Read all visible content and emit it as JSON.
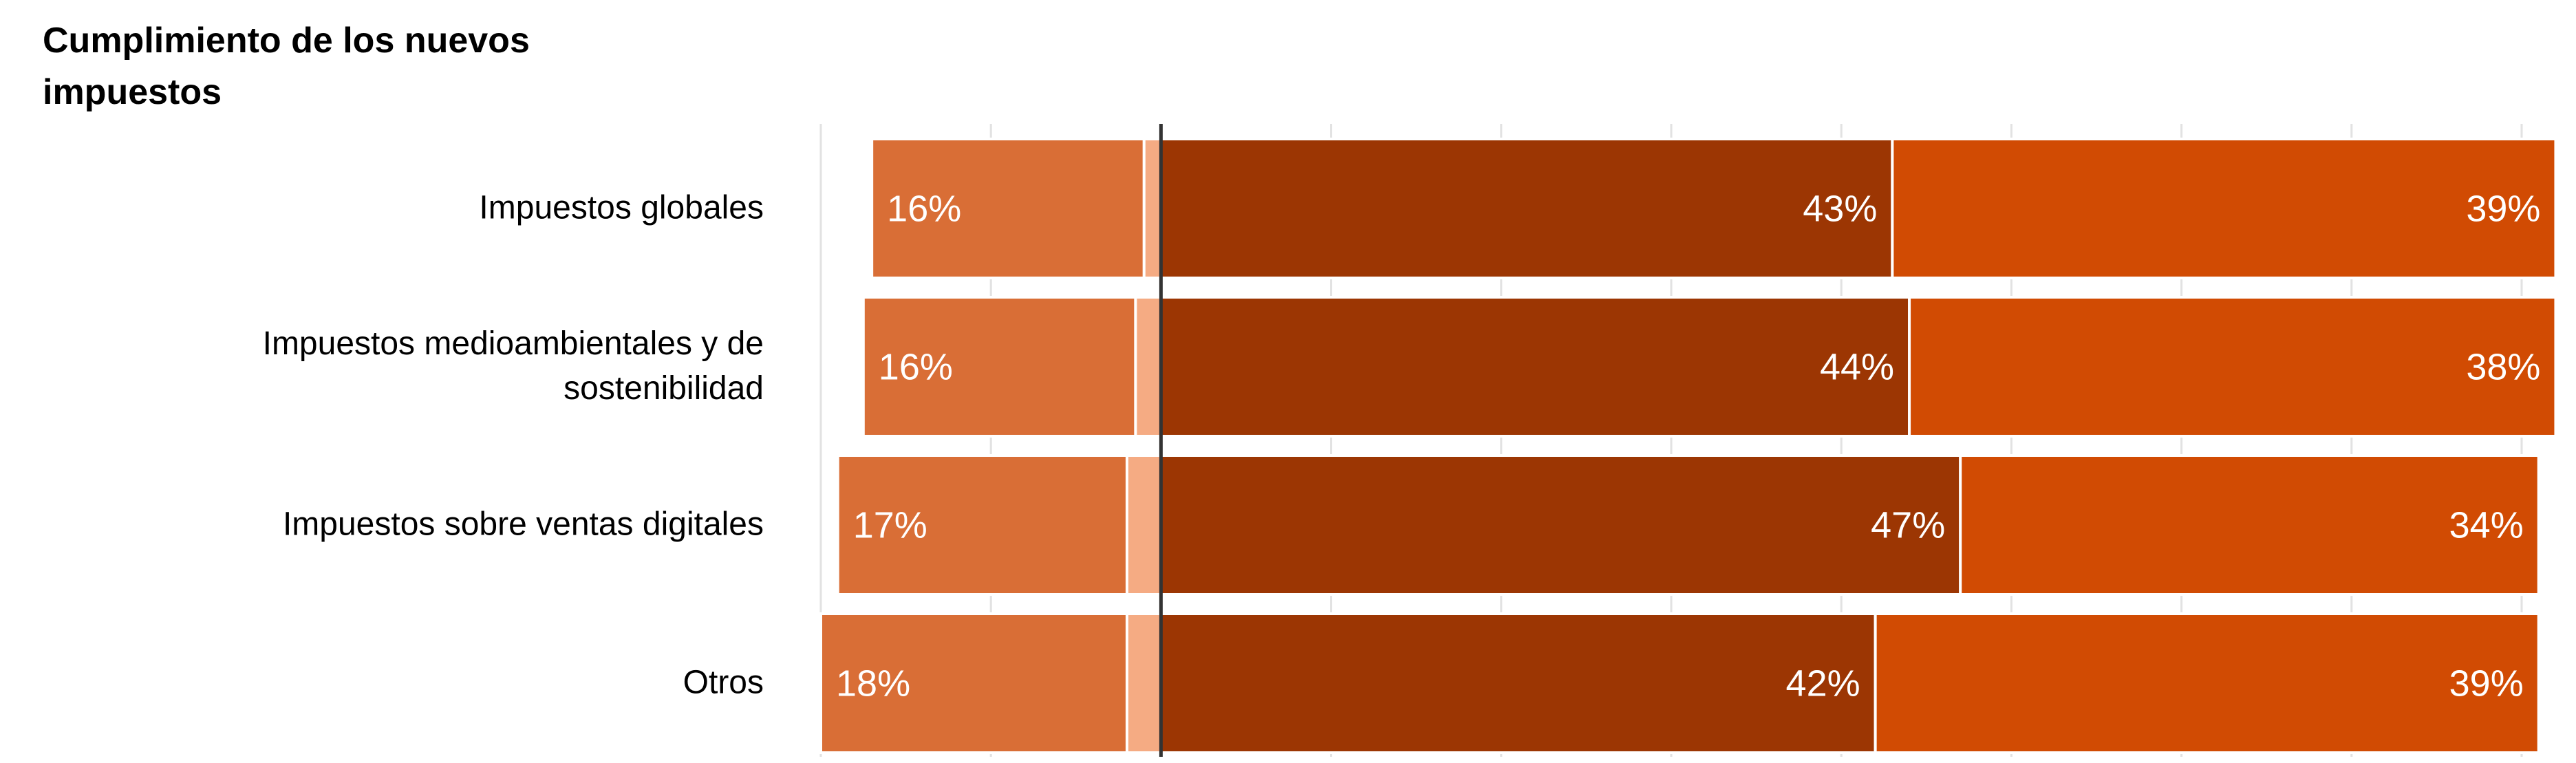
{
  "chart_data": {
    "type": "diverging-bar",
    "title": "Cumplimiento de los nuevos impuestos",
    "categories": [
      "Impuestos globales",
      "Impuestos medioambientales y de sostenibilidad",
      "Impuestos sobre ventas digitales",
      "Otros"
    ],
    "series": [
      {
        "color": "#f5ab83",
        "side": "left",
        "values": [
          1,
          1.5,
          2,
          2
        ]
      },
      {
        "color": "#d96e36",
        "side": "left",
        "values": [
          16,
          16,
          17,
          18
        ],
        "value_labels": [
          "16%",
          "16%",
          "17%",
          "18%"
        ]
      },
      {
        "color": "#9c3603",
        "side": "right",
        "values": [
          43,
          44,
          47,
          42
        ],
        "value_labels": [
          "43%",
          "44%",
          "47%",
          "42%"
        ]
      },
      {
        "color": "#d14b03",
        "side": "right",
        "values": [
          39,
          38,
          34,
          39
        ],
        "value_labels": [
          "39%",
          "38%",
          "34%",
          "39%"
        ]
      }
    ],
    "xlim": [
      -20,
      82
    ],
    "xticks": [
      -20,
      -10,
      0,
      10,
      20,
      30,
      40,
      50,
      60,
      70,
      80
    ],
    "grid": true,
    "tick_labels": false,
    "orientation": "horizontal"
  }
}
